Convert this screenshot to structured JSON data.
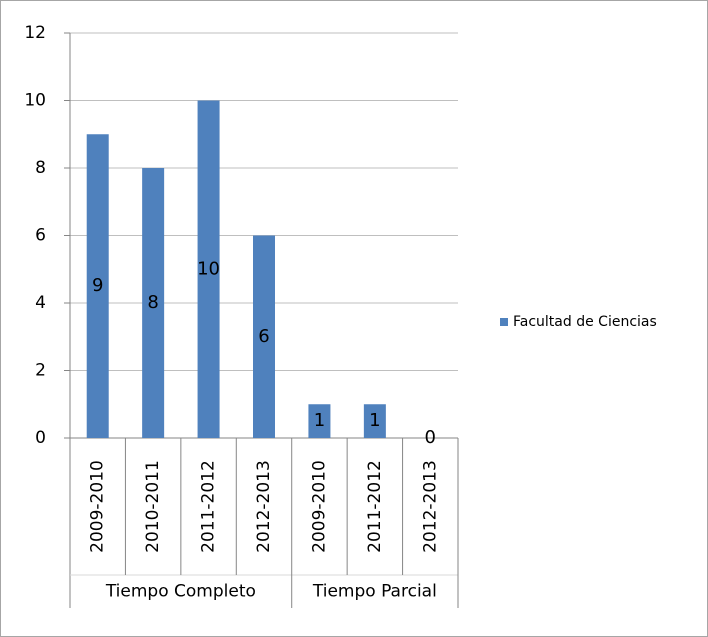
{
  "chart_data": {
    "type": "bar",
    "category_groups": [
      {
        "name": "Tiempo Completo",
        "categories": [
          "2009-2010",
          "2010-2011",
          "2011-2012",
          "2012-2013"
        ]
      },
      {
        "name": "Tiempo Parcial",
        "categories": [
          "2009-2010",
          "2011-2012",
          "2012-2013"
        ]
      }
    ],
    "series": [
      {
        "name": "Facultad de Ciencias",
        "color": "#4f81bd",
        "values": [
          9,
          8,
          10,
          6,
          1,
          1,
          0
        ]
      }
    ],
    "ylim": [
      0,
      12
    ],
    "yticks": [
      0,
      2,
      4,
      6,
      8,
      10,
      12
    ],
    "grid": true,
    "legend": "right"
  }
}
